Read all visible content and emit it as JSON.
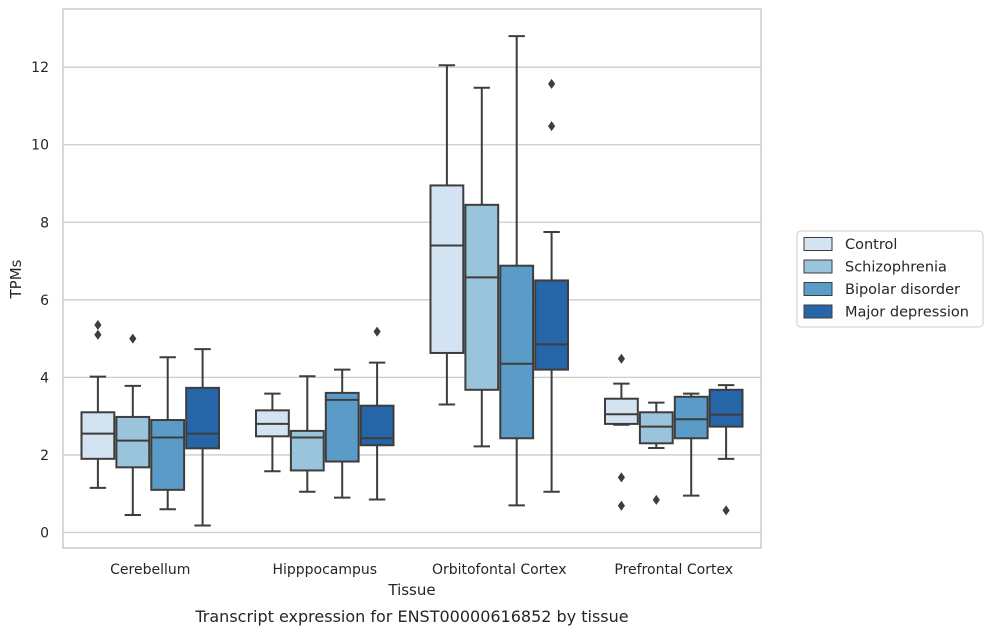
{
  "chart_data": {
    "type": "box",
    "xlabel": "Tissue",
    "ylabel": "TPMs",
    "caption": "Transcript expression for ENST00000616852 by tissue",
    "ylim": [
      -0.4,
      13.5
    ],
    "yticks": [
      0,
      2,
      4,
      6,
      8,
      10,
      12
    ],
    "grid": "horizontal",
    "legend_position": "right",
    "categories": [
      "Cerebellum",
      "Hipppocampus",
      "Orbitofontal Cortex",
      "Prefrontal Cortex"
    ],
    "series": [
      {
        "name": "Control",
        "color": "#d4e3f2",
        "boxes": [
          {
            "whislo": 1.15,
            "q1": 1.9,
            "med": 2.55,
            "q3": 3.1,
            "whishi": 4.02,
            "fliers": [
              5.1,
              5.35
            ]
          },
          {
            "whislo": 1.58,
            "q1": 2.48,
            "med": 2.8,
            "q3": 3.15,
            "whishi": 3.58,
            "fliers": []
          },
          {
            "whislo": 3.3,
            "q1": 4.63,
            "med": 7.4,
            "q3": 8.95,
            "whishi": 12.05,
            "fliers": []
          },
          {
            "whislo": 2.78,
            "q1": 2.8,
            "med": 3.05,
            "q3": 3.45,
            "whishi": 3.84,
            "fliers": [
              4.48,
              1.42,
              0.69
            ]
          }
        ]
      },
      {
        "name": "Schizophrenia",
        "color": "#9ac3dc",
        "boxes": [
          {
            "whislo": 0.45,
            "q1": 1.68,
            "med": 2.37,
            "q3": 2.98,
            "whishi": 3.78,
            "fliers": [
              5.0
            ]
          },
          {
            "whislo": 1.05,
            "q1": 1.6,
            "med": 2.45,
            "q3": 2.62,
            "whishi": 4.03,
            "fliers": []
          },
          {
            "whislo": 2.22,
            "q1": 3.68,
            "med": 6.58,
            "q3": 8.45,
            "whishi": 11.47,
            "fliers": []
          },
          {
            "whislo": 2.18,
            "q1": 2.3,
            "med": 2.73,
            "q3": 3.1,
            "whishi": 3.35,
            "fliers": [
              0.84
            ]
          }
        ]
      },
      {
        "name": "Bipolar disorder",
        "color": "#5b9bc8",
        "boxes": [
          {
            "whislo": 0.6,
            "q1": 1.1,
            "med": 2.45,
            "q3": 2.9,
            "whishi": 4.52,
            "fliers": []
          },
          {
            "whislo": 0.9,
            "q1": 1.83,
            "med": 3.42,
            "q3": 3.6,
            "whishi": 4.2,
            "fliers": []
          },
          {
            "whislo": 0.7,
            "q1": 2.43,
            "med": 4.35,
            "q3": 6.88,
            "whishi": 12.8,
            "fliers": []
          },
          {
            "whislo": 0.95,
            "q1": 2.43,
            "med": 2.92,
            "q3": 3.5,
            "whishi": 3.58,
            "fliers": []
          }
        ]
      },
      {
        "name": "Major depression",
        "color": "#2666a8",
        "boxes": [
          {
            "whislo": 0.18,
            "q1": 2.17,
            "med": 2.55,
            "q3": 3.73,
            "whishi": 4.73,
            "fliers": []
          },
          {
            "whislo": 0.85,
            "q1": 2.25,
            "med": 2.43,
            "q3": 3.27,
            "whishi": 4.38,
            "fliers": [
              5.18
            ]
          },
          {
            "whislo": 1.05,
            "q1": 4.2,
            "med": 4.85,
            "q3": 6.5,
            "whishi": 7.75,
            "fliers": [
              10.48,
              11.57
            ]
          },
          {
            "whislo": 1.9,
            "q1": 2.73,
            "med": 3.04,
            "q3": 3.68,
            "whishi": 3.8,
            "fliers": [
              0.57
            ]
          }
        ]
      }
    ]
  }
}
